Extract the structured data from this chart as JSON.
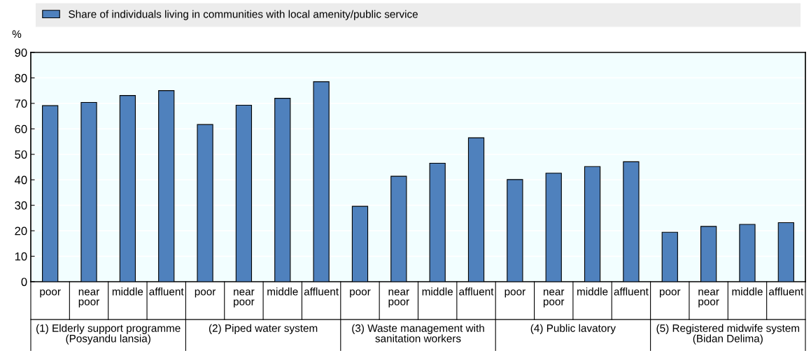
{
  "chart_data": {
    "type": "bar",
    "categories": [
      "poor",
      "near\npoor",
      "middle",
      "affluent",
      "poor",
      "near\npoor",
      "middle",
      "affluent",
      "poor",
      "near\npoor",
      "middle",
      "affluent",
      "poor",
      "near\npoor",
      "middle",
      "affluent",
      "poor",
      "near\npoor",
      "middle",
      "affluent"
    ],
    "series": [
      {
        "name": "Share of individuals living in communities with local amenity/public service",
        "color": "#4f81bd",
        "values": [
          69.1,
          70.4,
          73.1,
          75.0,
          61.7,
          69.3,
          72.0,
          78.5,
          29.6,
          41.4,
          46.5,
          56.5,
          40.1,
          42.6,
          45.2,
          47.1,
          19.4,
          21.7,
          22.5,
          23.2
        ]
      }
    ],
    "ylabel": "%",
    "annotations": [
      "(1) Elderly support programme\n(Posyandu lansia)",
      "(2) Piped water system",
      "(3) Waste management with\nsanitation workers",
      "(4) Public lavatory",
      "(5) Registered midwife system\n(Bidan Delima)"
    ],
    "ylim": [
      0,
      90
    ],
    "yticks": [
      0,
      10,
      20,
      30,
      40,
      50,
      60,
      70,
      80,
      90
    ],
    "grid": "y",
    "legend": "top"
  }
}
